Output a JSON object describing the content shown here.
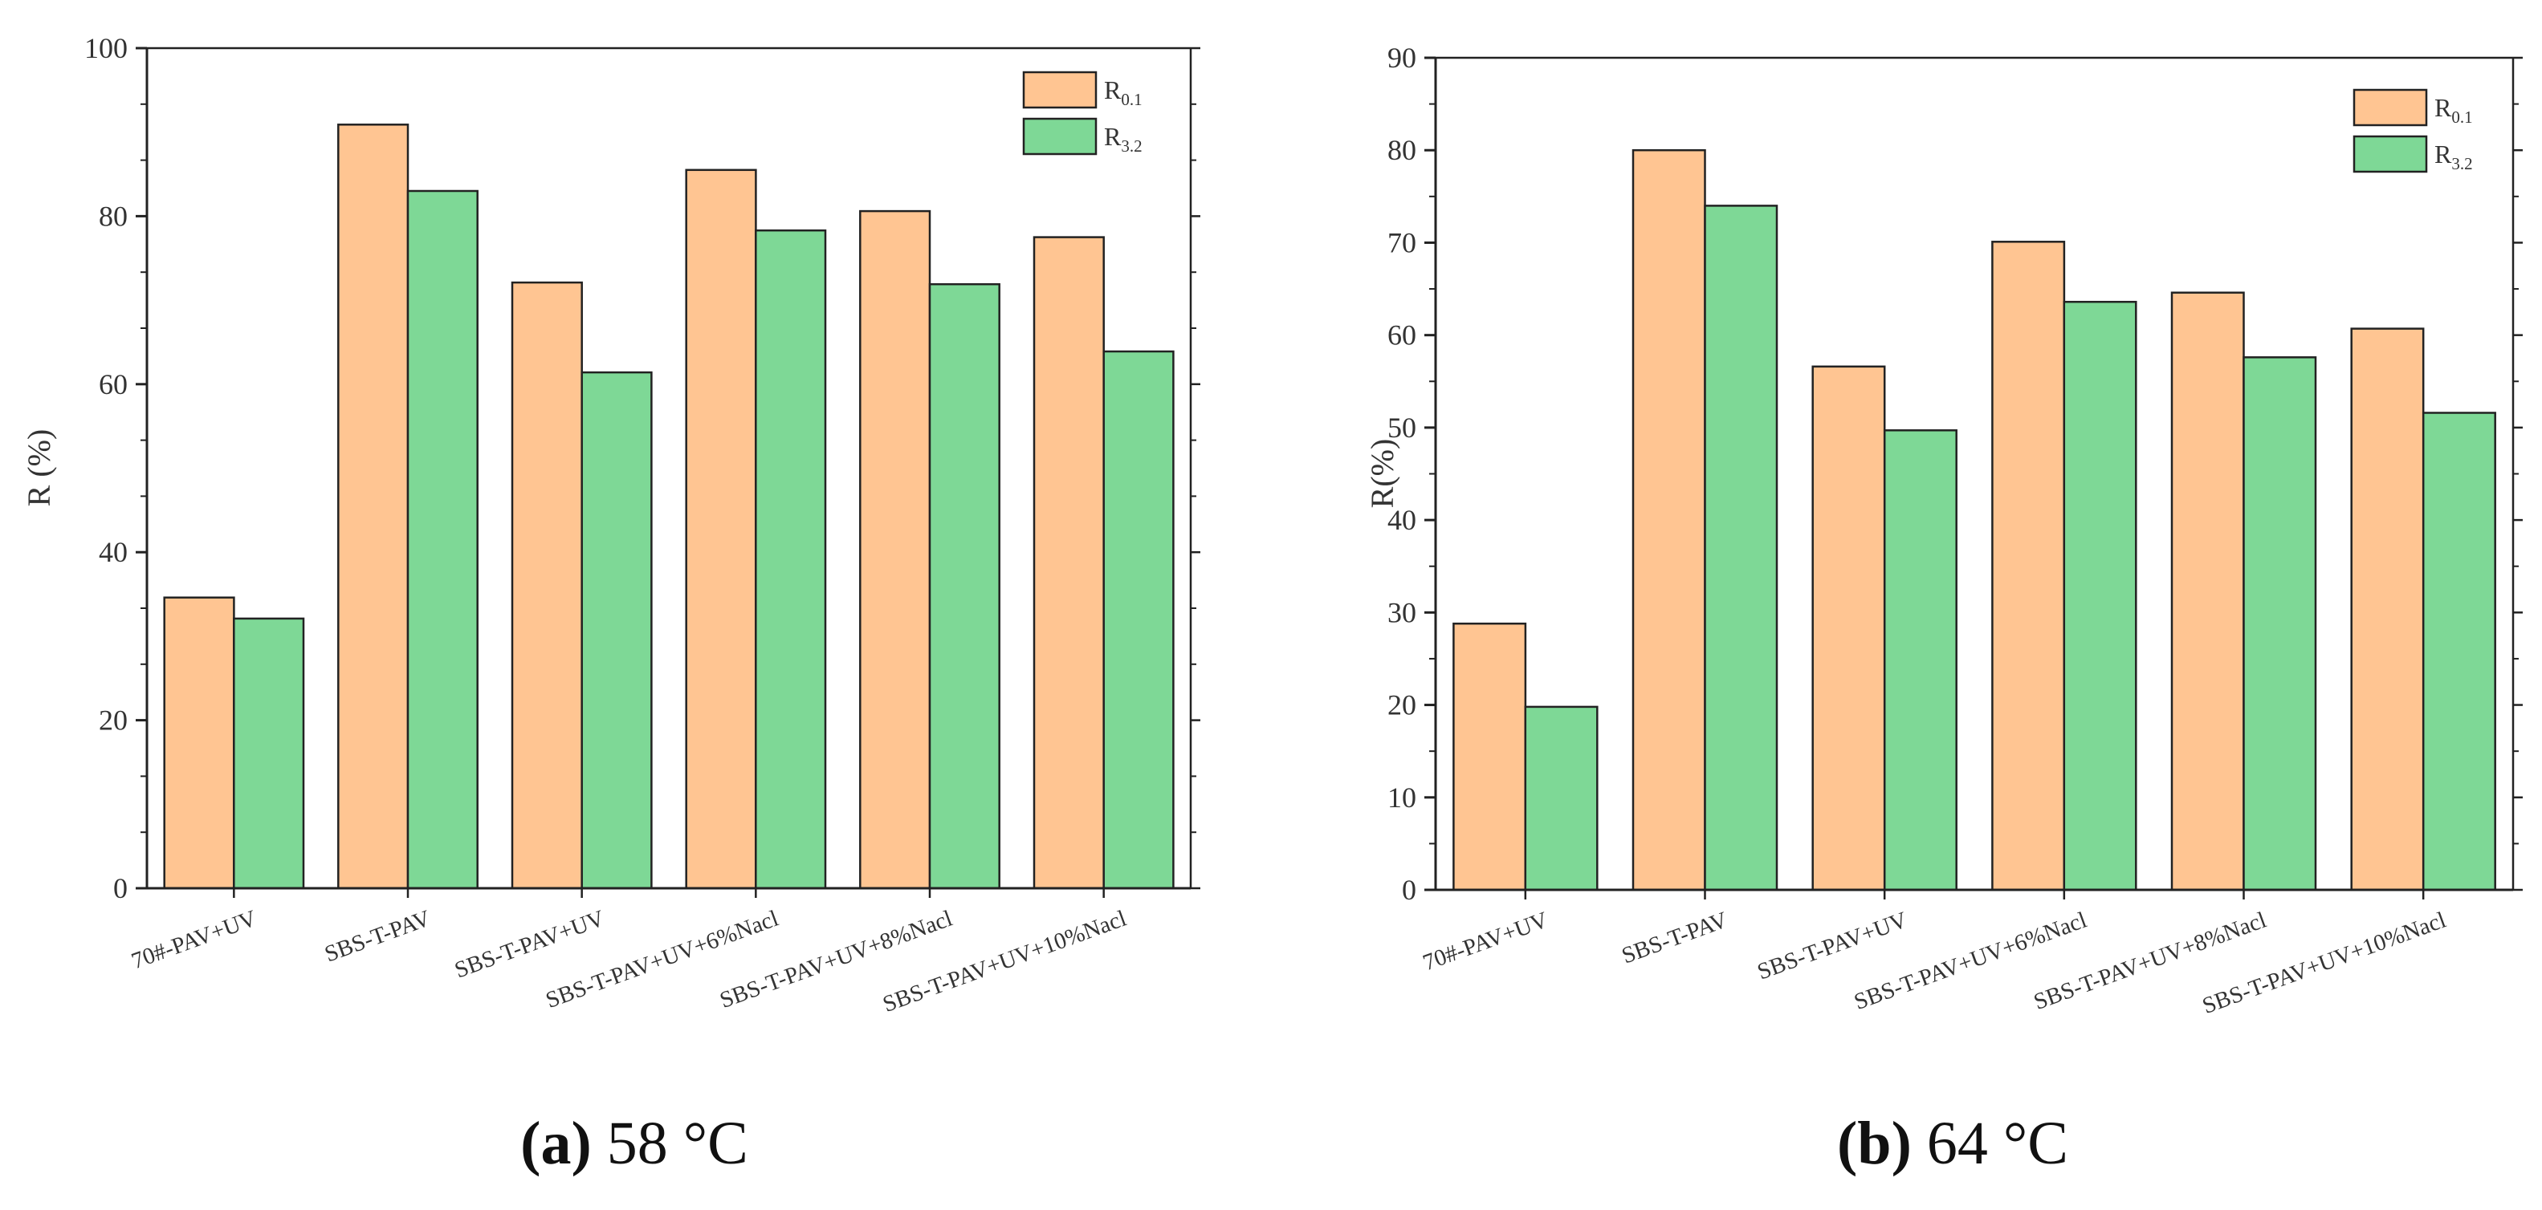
{
  "colors": {
    "r01": "#FFC592",
    "r32": "#7ED896",
    "stroke": "#222222",
    "axis": "#222222"
  },
  "chart_data": [
    {
      "type": "bar",
      "title": "",
      "xlabel": "",
      "ylabel": "R (%)",
      "ylim": [
        0,
        100
      ],
      "yticks": [
        0,
        20,
        40,
        60,
        80,
        100
      ],
      "ytick_labels": [
        "0",
        "20",
        "40",
        "60",
        "80",
        "100"
      ],
      "categories": [
        "70#-PAV+UV",
        "SBS-T-PAV",
        "SBS-T-PAV+UV",
        "SBS-T-PAV+UV+6%Nacl",
        "SBS-T-PAV+UV+8%Nacl",
        "SBS-T-PAV+UV+10%Nacl"
      ],
      "series": [
        {
          "name": "R0.1",
          "label_main": "R",
          "label_sub": "0.1",
          "values": [
            34.6,
            90.9,
            72.1,
            85.5,
            80.6,
            77.5
          ]
        },
        {
          "name": "R3.2",
          "label_main": "R",
          "label_sub": "3.2",
          "values": [
            32.1,
            83.0,
            61.4,
            78.3,
            71.9,
            63.9
          ]
        }
      ],
      "legend": "top-right",
      "caption_letter": "(a)",
      "caption_text": " 58 °C"
    },
    {
      "type": "bar",
      "title": "",
      "xlabel": "",
      "ylabel": "R(%)",
      "ylim": [
        0,
        90
      ],
      "yticks": [
        0,
        10,
        20,
        30,
        40,
        50,
        60,
        70,
        80,
        90
      ],
      "ytick_labels": [
        "0",
        "10",
        "20",
        "30",
        "40",
        "50",
        "60",
        "70",
        "80",
        "90"
      ],
      "categories": [
        "70#-PAV+UV",
        "SBS-T-PAV",
        "SBS-T-PAV+UV",
        "SBS-T-PAV+UV+6%Nacl",
        "SBS-T-PAV+UV+8%Nacl",
        "SBS-T-PAV+UV+10%Nacl"
      ],
      "series": [
        {
          "name": "R0.1",
          "label_main": "R",
          "label_sub": "0.1",
          "values": [
            28.8,
            80.0,
            56.6,
            70.1,
            64.6,
            60.7
          ]
        },
        {
          "name": "R3.2",
          "label_main": "R",
          "label_sub": "3.2",
          "values": [
            19.8,
            74.0,
            49.7,
            63.6,
            57.6,
            51.6
          ]
        }
      ],
      "legend": "top-right",
      "caption_letter": "(b)",
      "caption_text": " 64 °C"
    }
  ]
}
